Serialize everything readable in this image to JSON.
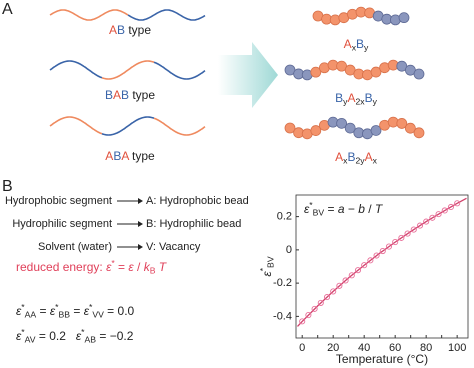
{
  "panel_a": {
    "label": "A",
    "types": [
      {
        "parts": [
          {
            "text": "A",
            "color": "#e0503c"
          },
          {
            "text": "B",
            "color": "#3a64a8"
          },
          {
            "text": " type"
          }
        ]
      },
      {
        "parts": [
          {
            "text": "B",
            "color": "#3a64a8"
          },
          {
            "text": "A",
            "color": "#e0503c"
          },
          {
            "text": "B",
            "color": "#3a64a8"
          },
          {
            "text": " type"
          }
        ]
      },
      {
        "parts": [
          {
            "text": "A",
            "color": "#e0503c"
          },
          {
            "text": "B",
            "color": "#3a64a8"
          },
          {
            "text": "A",
            "color": "#e0503c"
          },
          {
            "text": " type"
          }
        ]
      }
    ],
    "products": [
      {
        "parts": [
          {
            "text": "A",
            "color": "#e0503c"
          },
          {
            "text": "x",
            "sub": true
          },
          {
            "text": "B",
            "color": "#3a64a8"
          },
          {
            "text": "y",
            "sub": true
          }
        ]
      },
      {
        "parts": [
          {
            "text": "B",
            "color": "#3a64a8"
          },
          {
            "text": "y",
            "sub": true
          },
          {
            "text": "A",
            "color": "#e0503c"
          },
          {
            "text": "2x",
            "sub": true
          },
          {
            "text": "B",
            "color": "#3a64a8"
          },
          {
            "text": "y",
            "sub": true
          }
        ]
      },
      {
        "parts": [
          {
            "text": "A",
            "color": "#e0503c"
          },
          {
            "text": "x",
            "sub": true
          },
          {
            "text": "B",
            "color": "#3a64a8"
          },
          {
            "text": "2y",
            "sub": true
          },
          {
            "text": "A",
            "color": "#e0503c"
          },
          {
            "text": "x",
            "sub": true
          }
        ]
      }
    ]
  },
  "panel_b": {
    "label": "B",
    "mappings": [
      {
        "from": "Hydrophobic segment",
        "to": "A: Hydrophobic bead"
      },
      {
        "from": "Hydrophilic segment",
        "to": "B: Hydrophilic bead"
      },
      {
        "from": "Solvent (water)",
        "to": "V: Vacancy"
      }
    ],
    "reduced_energy": {
      "color": "#e0405a",
      "parts": [
        {
          "text": "reduced energy: "
        },
        {
          "text": "ε",
          "italic": true
        },
        {
          "text": "*",
          "sup": true
        },
        {
          "text": " = "
        },
        {
          "text": "ε",
          "italic": true
        },
        {
          "text": " / "
        },
        {
          "text": "k",
          "italic": true
        },
        {
          "text": "B",
          "sub": true
        },
        {
          "text": " "
        },
        {
          "text": "T",
          "italic": true
        }
      ]
    },
    "equations": [
      {
        "parts": [
          {
            "text": "ε",
            "italic": true
          },
          {
            "text": "*",
            "sup": true
          },
          {
            "text": "AA",
            "sub": true
          },
          {
            "text": " = "
          },
          {
            "text": "ε",
            "italic": true
          },
          {
            "text": "*",
            "sup": true
          },
          {
            "text": "BB",
            "sub": true
          },
          {
            "text": " = "
          },
          {
            "text": "ε",
            "italic": true
          },
          {
            "text": "*",
            "sup": true
          },
          {
            "text": "VV",
            "sub": true
          },
          {
            "text": " = 0.0"
          }
        ]
      },
      {
        "parts": [
          {
            "text": "ε",
            "italic": true
          },
          {
            "text": "*",
            "sup": true
          },
          {
            "text": "AV",
            "sub": true
          },
          {
            "text": " = 0.2   "
          },
          {
            "text": "ε",
            "italic": true
          },
          {
            "text": "*",
            "sup": true
          },
          {
            "text": "AB",
            "sub": true
          },
          {
            "text": " = −0.2"
          }
        ]
      }
    ]
  },
  "chart_data": {
    "type": "line",
    "xlabel": "Temperature (°C)",
    "ylabel": {
      "parts": [
        {
          "text": "ε",
          "italic": true
        },
        {
          "text": "*",
          "sup": true
        },
        {
          "text": "BV",
          "sub": true
        }
      ]
    },
    "annotation": {
      "parts": [
        {
          "text": "ε",
          "italic": true
        },
        {
          "text": "*",
          "sup": true
        },
        {
          "text": "BV",
          "sub": true
        },
        {
          "text": " = "
        },
        {
          "text": "a",
          "italic": true
        },
        {
          "text": " − "
        },
        {
          "text": "b",
          "italic": true
        },
        {
          "text": " / "
        },
        {
          "text": "T",
          "italic": true
        }
      ]
    },
    "xlim": [
      -4,
      107
    ],
    "xticks": [
      0,
      10,
      20,
      30,
      40,
      50,
      60,
      70,
      80,
      90,
      100
    ],
    "ylim": [
      -0.53,
      0.33
    ],
    "yticks": [
      -0.4,
      -0.2,
      0,
      0.2
    ],
    "series": [
      {
        "color": "#d0406a",
        "marker": false,
        "x": [
          -3,
          0,
          10,
          20,
          30,
          40,
          50,
          60,
          70,
          80,
          90,
          100,
          106
        ],
        "values": [
          -0.46,
          -0.43,
          -0.337,
          -0.25,
          -0.168,
          -0.092,
          -0.02,
          0.047,
          0.11,
          0.17,
          0.226,
          0.28,
          0.31
        ]
      },
      {
        "color": "#e8709a",
        "marker": true,
        "x": [
          0,
          4,
          8,
          12,
          16,
          20,
          24,
          28,
          32,
          36,
          40,
          44,
          48,
          52,
          56,
          60,
          64,
          68,
          72,
          76,
          80,
          84,
          88,
          92,
          96,
          100
        ],
        "values": [
          -0.43,
          -0.392,
          -0.355,
          -0.319,
          -0.284,
          -0.25,
          -0.216,
          -0.184,
          -0.153,
          -0.122,
          -0.092,
          -0.063,
          -0.034,
          -0.007,
          0.02,
          0.047,
          0.072,
          0.098,
          0.122,
          0.146,
          0.17,
          0.193,
          0.215,
          0.237,
          0.258,
          0.28
        ]
      }
    ]
  }
}
